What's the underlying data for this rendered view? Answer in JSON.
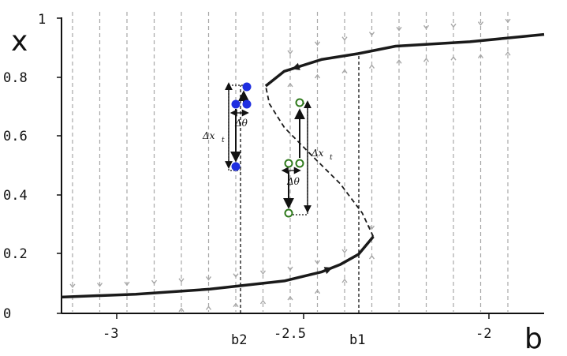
{
  "axes": {
    "x_name": "b",
    "y_name": "x",
    "y_ticks": [
      "0",
      "0.2",
      "0.4",
      "0.6",
      "0.8",
      "1"
    ],
    "x_ticks": [
      "-3",
      "-2.5",
      "-2"
    ]
  },
  "bifurcations": {
    "b2": "b2",
    "b1": "b1"
  },
  "annotations": {
    "delta_theta": "Δθ",
    "delta_x": "Δx",
    "delta_x_sub": "t"
  },
  "colors": {
    "curve": "#1a1a1a",
    "flow_lines": "#a8a8a8",
    "blue_points": "#1e2ee0",
    "green_points": "#2f7a1c"
  },
  "chart_data": {
    "type": "line",
    "xlim": [
      -3.2,
      -1.9
    ],
    "ylim": [
      0,
      1
    ],
    "series": [
      {
        "style": "solid",
        "points": [
          [
            -3.2,
            0.055
          ],
          [
            -3.0,
            0.065
          ],
          [
            -2.8,
            0.082
          ],
          [
            -2.6,
            0.11
          ],
          [
            -2.5,
            0.14
          ],
          [
            -2.45,
            0.165
          ],
          [
            -2.4,
            0.2
          ],
          [
            -2.36,
            0.26
          ]
        ]
      },
      {
        "style": "dashed",
        "points": [
          [
            -2.36,
            0.26
          ],
          [
            -2.39,
            0.34
          ],
          [
            -2.45,
            0.44
          ],
          [
            -2.53,
            0.54
          ],
          [
            -2.6,
            0.63
          ],
          [
            -2.64,
            0.71
          ],
          [
            -2.65,
            0.77
          ]
        ]
      },
      {
        "style": "solid",
        "points": [
          [
            -2.65,
            0.77
          ],
          [
            -2.6,
            0.82
          ],
          [
            -2.5,
            0.86
          ],
          [
            -2.4,
            0.88
          ],
          [
            -2.3,
            0.905
          ],
          [
            -2.1,
            0.92
          ],
          [
            -1.9,
            0.945
          ]
        ]
      }
    ]
  }
}
